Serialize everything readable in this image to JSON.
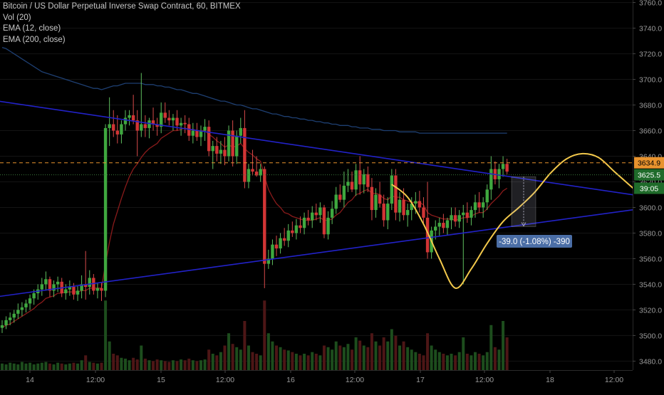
{
  "chart_data": {
    "type": "candlestick",
    "title": "Bitcoin / US Dollar Perpetual Inverse Swap Contract, 60, BITMEX",
    "indicators": [
      "Vol (20)",
      "EMA (12, close)",
      "EMA (200, close)"
    ],
    "x_ticks": [
      "14",
      "12:00",
      "15",
      "12:00",
      "16",
      "12:00",
      "17",
      "12:00",
      "18",
      "12:00"
    ],
    "y_ticks": [
      3760,
      3740,
      3720,
      3700,
      3680,
      3660,
      3640,
      3620,
      3600,
      3580,
      3560,
      3540,
      3520,
      3500,
      3480
    ],
    "ylim": [
      3473,
      3762
    ],
    "price_labels": [
      {
        "text": "3634.9",
        "value": 3634.9
      },
      {
        "text": "3625.5",
        "value": 3625.5
      },
      {
        "text": "39:05",
        "value": 3615
      }
    ],
    "hline_price": 3634.9,
    "current_price": 3625.5,
    "measure_label": "-39.0 (-1.08%) -390",
    "ohlc": [
      [
        3506,
        3512,
        3502,
        3508
      ],
      [
        3508,
        3515,
        3505,
        3512
      ],
      [
        3512,
        3518,
        3508,
        3514
      ],
      [
        3514,
        3520,
        3510,
        3517
      ],
      [
        3517,
        3525,
        3513,
        3520
      ],
      [
        3520,
        3526,
        3515,
        3522
      ],
      [
        3522,
        3528,
        3518,
        3525
      ],
      [
        3525,
        3532,
        3520,
        3529
      ],
      [
        3529,
        3536,
        3524,
        3533
      ],
      [
        3533,
        3540,
        3528,
        3536
      ],
      [
        3536,
        3545,
        3531,
        3540
      ],
      [
        3540,
        3550,
        3535,
        3544
      ],
      [
        3544,
        3546,
        3530,
        3535
      ],
      [
        3535,
        3543,
        3530,
        3540
      ],
      [
        3540,
        3546,
        3534,
        3542
      ],
      [
        3542,
        3545,
        3530,
        3533
      ],
      [
        3533,
        3540,
        3528,
        3536
      ],
      [
        3536,
        3543,
        3531,
        3538
      ],
      [
        3538,
        3541,
        3528,
        3532
      ],
      [
        3532,
        3539,
        3527,
        3535
      ],
      [
        3535,
        3547,
        3529,
        3540
      ],
      [
        3540,
        3566,
        3528,
        3538
      ],
      [
        3538,
        3551,
        3532,
        3545
      ],
      [
        3545,
        3548,
        3532,
        3535
      ],
      [
        3535,
        3541,
        3529,
        3537
      ],
      [
        3537,
        3541,
        3527,
        3535
      ],
      [
        3535,
        3665,
        3530,
        3662
      ],
      [
        3662,
        3686,
        3648,
        3665
      ],
      [
        3665,
        3676,
        3655,
        3660
      ],
      [
        3660,
        3672,
        3650,
        3657
      ],
      [
        3657,
        3668,
        3650,
        3665
      ],
      [
        3665,
        3676,
        3660,
        3670
      ],
      [
        3670,
        3676,
        3664,
        3672
      ],
      [
        3672,
        3688,
        3665,
        3668
      ],
      [
        3668,
        3676,
        3640,
        3660
      ],
      [
        3660,
        3705,
        3655,
        3665
      ],
      [
        3665,
        3672,
        3655,
        3662
      ],
      [
        3662,
        3670,
        3654,
        3668
      ],
      [
        3668,
        3678,
        3660,
        3665
      ],
      [
        3665,
        3670,
        3656,
        3663
      ],
      [
        3663,
        3682,
        3658,
        3674
      ],
      [
        3674,
        3682,
        3666,
        3670
      ],
      [
        3670,
        3676,
        3664,
        3668
      ],
      [
        3668,
        3673,
        3660,
        3670
      ],
      [
        3670,
        3676,
        3660,
        3664
      ],
      [
        3664,
        3670,
        3656,
        3666
      ],
      [
        3666,
        3672,
        3658,
        3665
      ],
      [
        3665,
        3670,
        3652,
        3656
      ],
      [
        3656,
        3666,
        3650,
        3660
      ],
      [
        3660,
        3666,
        3652,
        3655
      ],
      [
        3655,
        3664,
        3648,
        3660
      ],
      [
        3660,
        3669,
        3652,
        3663
      ],
      [
        3663,
        3668,
        3640,
        3644
      ],
      [
        3644,
        3652,
        3630,
        3648
      ],
      [
        3648,
        3655,
        3636,
        3642
      ],
      [
        3642,
        3652,
        3634,
        3645
      ],
      [
        3645,
        3655,
        3633,
        3640
      ],
      [
        3640,
        3664,
        3636,
        3660
      ],
      [
        3660,
        3668,
        3632,
        3640
      ],
      [
        3640,
        3660,
        3634,
        3656
      ],
      [
        3656,
        3670,
        3650,
        3662
      ],
      [
        3662,
        3676,
        3615,
        3620
      ],
      [
        3620,
        3634,
        3615,
        3630
      ],
      [
        3630,
        3645,
        3625,
        3628
      ],
      [
        3628,
        3640,
        3624,
        3625
      ],
      [
        3625,
        3634,
        3620,
        3630
      ],
      [
        3630,
        3632,
        3537,
        3556
      ],
      [
        3556,
        3567,
        3552,
        3560
      ],
      [
        3560,
        3575,
        3555,
        3571
      ],
      [
        3571,
        3578,
        3562,
        3568
      ],
      [
        3568,
        3580,
        3564,
        3576
      ],
      [
        3576,
        3584,
        3570,
        3574
      ],
      [
        3574,
        3587,
        3569,
        3582
      ],
      [
        3582,
        3589,
        3577,
        3580
      ],
      [
        3580,
        3591,
        3575,
        3586
      ],
      [
        3586,
        3593,
        3580,
        3584
      ],
      [
        3584,
        3596,
        3579,
        3592
      ],
      [
        3592,
        3598,
        3586,
        3590
      ],
      [
        3590,
        3601,
        3584,
        3596
      ],
      [
        3596,
        3603,
        3590,
        3594
      ],
      [
        3594,
        3604,
        3588,
        3600
      ],
      [
        3600,
        3602,
        3576,
        3579
      ],
      [
        3579,
        3597,
        3575,
        3592
      ],
      [
        3592,
        3605,
        3587,
        3599
      ],
      [
        3599,
        3616,
        3595,
        3610
      ],
      [
        3610,
        3618,
        3604,
        3606
      ],
      [
        3606,
        3628,
        3600,
        3617
      ],
      [
        3617,
        3630,
        3612,
        3620
      ],
      [
        3620,
        3628,
        3612,
        3614
      ],
      [
        3614,
        3634,
        3609,
        3629
      ],
      [
        3629,
        3640,
        3610,
        3618
      ],
      [
        3618,
        3630,
        3611,
        3626
      ],
      [
        3626,
        3632,
        3612,
        3616
      ],
      [
        3616,
        3623,
        3590,
        3598
      ],
      [
        3598,
        3615,
        3592,
        3610
      ],
      [
        3610,
        3620,
        3600,
        3603
      ],
      [
        3603,
        3610,
        3585,
        3590
      ],
      [
        3590,
        3608,
        3583,
        3603
      ],
      [
        3603,
        3630,
        3598,
        3625
      ],
      [
        3625,
        3630,
        3590,
        3596
      ],
      [
        3596,
        3612,
        3589,
        3606
      ],
      [
        3606,
        3615,
        3590,
        3594
      ],
      [
        3594,
        3603,
        3585,
        3598
      ],
      [
        3598,
        3608,
        3590,
        3603
      ],
      [
        3603,
        3612,
        3595,
        3605
      ],
      [
        3605,
        3613,
        3596,
        3600
      ],
      [
        3600,
        3608,
        3588,
        3592
      ],
      [
        3592,
        3620,
        3560,
        3565
      ],
      [
        3565,
        3585,
        3560,
        3582
      ],
      [
        3582,
        3590,
        3575,
        3585
      ],
      [
        3585,
        3592,
        3578,
        3588
      ],
      [
        3588,
        3595,
        3580,
        3584
      ],
      [
        3584,
        3592,
        3578,
        3590
      ],
      [
        3590,
        3600,
        3583,
        3594
      ],
      [
        3594,
        3600,
        3585,
        3589
      ],
      [
        3589,
        3598,
        3584,
        3594
      ],
      [
        3594,
        3602,
        3540,
        3596
      ],
      [
        3596,
        3604,
        3588,
        3592
      ],
      [
        3592,
        3601,
        3586,
        3598
      ],
      [
        3598,
        3610,
        3592,
        3604
      ],
      [
        3604,
        3612,
        3596,
        3600
      ],
      [
        3600,
        3608,
        3592,
        3604
      ],
      [
        3604,
        3618,
        3598,
        3614
      ],
      [
        3614,
        3640,
        3606,
        3630
      ],
      [
        3630,
        3636,
        3618,
        3622
      ],
      [
        3622,
        3634,
        3615,
        3630
      ],
      [
        3630,
        3640,
        3624,
        3634
      ],
      [
        3634,
        3638,
        3626,
        3628
      ]
    ],
    "volume": [
      8,
      7,
      9,
      8,
      7,
      10,
      8,
      9,
      7,
      8,
      9,
      10,
      8,
      7,
      9,
      8,
      7,
      8,
      9,
      8,
      12,
      18,
      10,
      9,
      8,
      9,
      85,
      35,
      20,
      18,
      15,
      14,
      12,
      15,
      13,
      30,
      14,
      12,
      11,
      13,
      12,
      11,
      10,
      12,
      11,
      13,
      12,
      14,
      12,
      11,
      12,
      13,
      25,
      20,
      18,
      22,
      30,
      45,
      32,
      28,
      25,
      60,
      30,
      22,
      20,
      18,
      85,
      45,
      35,
      30,
      28,
      25,
      24,
      22,
      20,
      18,
      20,
      18,
      22,
      20,
      18,
      30,
      28,
      25,
      35,
      30,
      28,
      32,
      25,
      40,
      36,
      30,
      28,
      45,
      35,
      30,
      40,
      35,
      50,
      42,
      30,
      35,
      28,
      25,
      22,
      20,
      18,
      45,
      30,
      25,
      22,
      20,
      18,
      20,
      18,
      22,
      40,
      20,
      18,
      22,
      20,
      18,
      22,
      55,
      28,
      25,
      60,
      40
    ],
    "ema12": [
      3506,
      3508,
      3509,
      3511,
      3513,
      3515,
      3517,
      3519,
      3521,
      3524,
      3526,
      3529,
      3530,
      3531,
      3533,
      3533,
      3534,
      3534,
      3534,
      3534,
      3535,
      3535,
      3537,
      3537,
      3537,
      3537,
      3556,
      3573,
      3587,
      3597,
      3607,
      3616,
      3624,
      3630,
      3634,
      3639,
      3643,
      3646,
      3648,
      3650,
      3654,
      3656,
      3658,
      3660,
      3660,
      3661,
      3662,
      3661,
      3661,
      3660,
      3660,
      3660,
      3657,
      3655,
      3652,
      3650,
      3647,
      3649,
      3647,
      3648,
      3650,
      3646,
      3643,
      3641,
      3638,
      3636,
      3624,
      3614,
      3608,
      3603,
      3600,
      3596,
      3595,
      3593,
      3592,
      3591,
      3590,
      3590,
      3590,
      3591,
      3592,
      3590,
      3590,
      3591,
      3594,
      3596,
      3600,
      3604,
      3606,
      3610,
      3611,
      3613,
      3614,
      3611,
      3611,
      3610,
      3607,
      3606,
      3609,
      3608,
      3608,
      3606,
      3605,
      3604,
      3604,
      3604,
      3602,
      3596,
      3594,
      3593,
      3592,
      3591,
      3591,
      3591,
      3590,
      3591,
      3592,
      3592,
      3593,
      3595,
      3596,
      3596,
      3599,
      3603,
      3606,
      3609,
      3613,
      3615
    ],
    "ema200": [
      3725,
      3724,
      3722,
      3720,
      3718,
      3716,
      3714,
      3712,
      3710,
      3708,
      3706,
      3705,
      3704,
      3703,
      3702,
      3701,
      3700,
      3699,
      3698,
      3697,
      3696,
      3695,
      3694,
      3693,
      3693,
      3692,
      3693,
      3694,
      3695,
      3695,
      3696,
      3697,
      3697,
      3697,
      3697,
      3697,
      3696,
      3696,
      3696,
      3695,
      3695,
      3694,
      3694,
      3693,
      3692,
      3692,
      3691,
      3690,
      3689,
      3689,
      3688,
      3687,
      3686,
      3685,
      3684,
      3683,
      3683,
      3682,
      3681,
      3680,
      3680,
      3679,
      3678,
      3677,
      3677,
      3676,
      3675,
      3674,
      3673,
      3673,
      3672,
      3671,
      3671,
      3670,
      3670,
      3669,
      3669,
      3668,
      3668,
      3667,
      3667,
      3666,
      3666,
      3665,
      3665,
      3664,
      3664,
      3664,
      3663,
      3663,
      3662,
      3662,
      3662,
      3661,
      3661,
      3661,
      3660,
      3660,
      3660,
      3660,
      3659,
      3659,
      3659,
      3659,
      3659,
      3658,
      3658,
      3658,
      3658,
      3658,
      3658,
      3658,
      3658,
      3658,
      3658,
      3658,
      3658,
      3658,
      3658,
      3658,
      3658,
      3658,
      3658,
      3658,
      3658,
      3658,
      3658,
      3658
    ],
    "trendlines": [
      {
        "name": "upper",
        "from": [
          -38,
          3700
        ],
        "to": [
          178,
          3601
        ]
      },
      {
        "name": "lower",
        "from": [
          -82,
          3496
        ],
        "to": [
          170,
          3603
        ]
      }
    ],
    "projection": [
      [
        98,
        3618
      ],
      [
        102,
        3608
      ],
      [
        106,
        3587
      ],
      [
        110,
        3560
      ],
      [
        114,
        3537
      ],
      [
        118,
        3552
      ],
      [
        122,
        3572
      ],
      [
        126,
        3589
      ],
      [
        130,
        3600
      ],
      [
        134,
        3612
      ],
      [
        138,
        3627
      ],
      [
        142,
        3638
      ],
      [
        146,
        3642
      ],
      [
        150,
        3639
      ],
      [
        154,
        3628
      ],
      [
        158,
        3617
      ],
      [
        162,
        3606
      ],
      [
        166,
        3597
      ],
      [
        170,
        3594
      ],
      [
        174,
        3600
      ],
      [
        178,
        3612
      ],
      [
        182,
        3627
      ],
      [
        186,
        3634
      ],
      [
        190,
        3635
      ],
      [
        194,
        3628
      ],
      [
        198,
        3617
      ],
      [
        202,
        3606
      ],
      [
        206,
        3597
      ]
    ]
  }
}
